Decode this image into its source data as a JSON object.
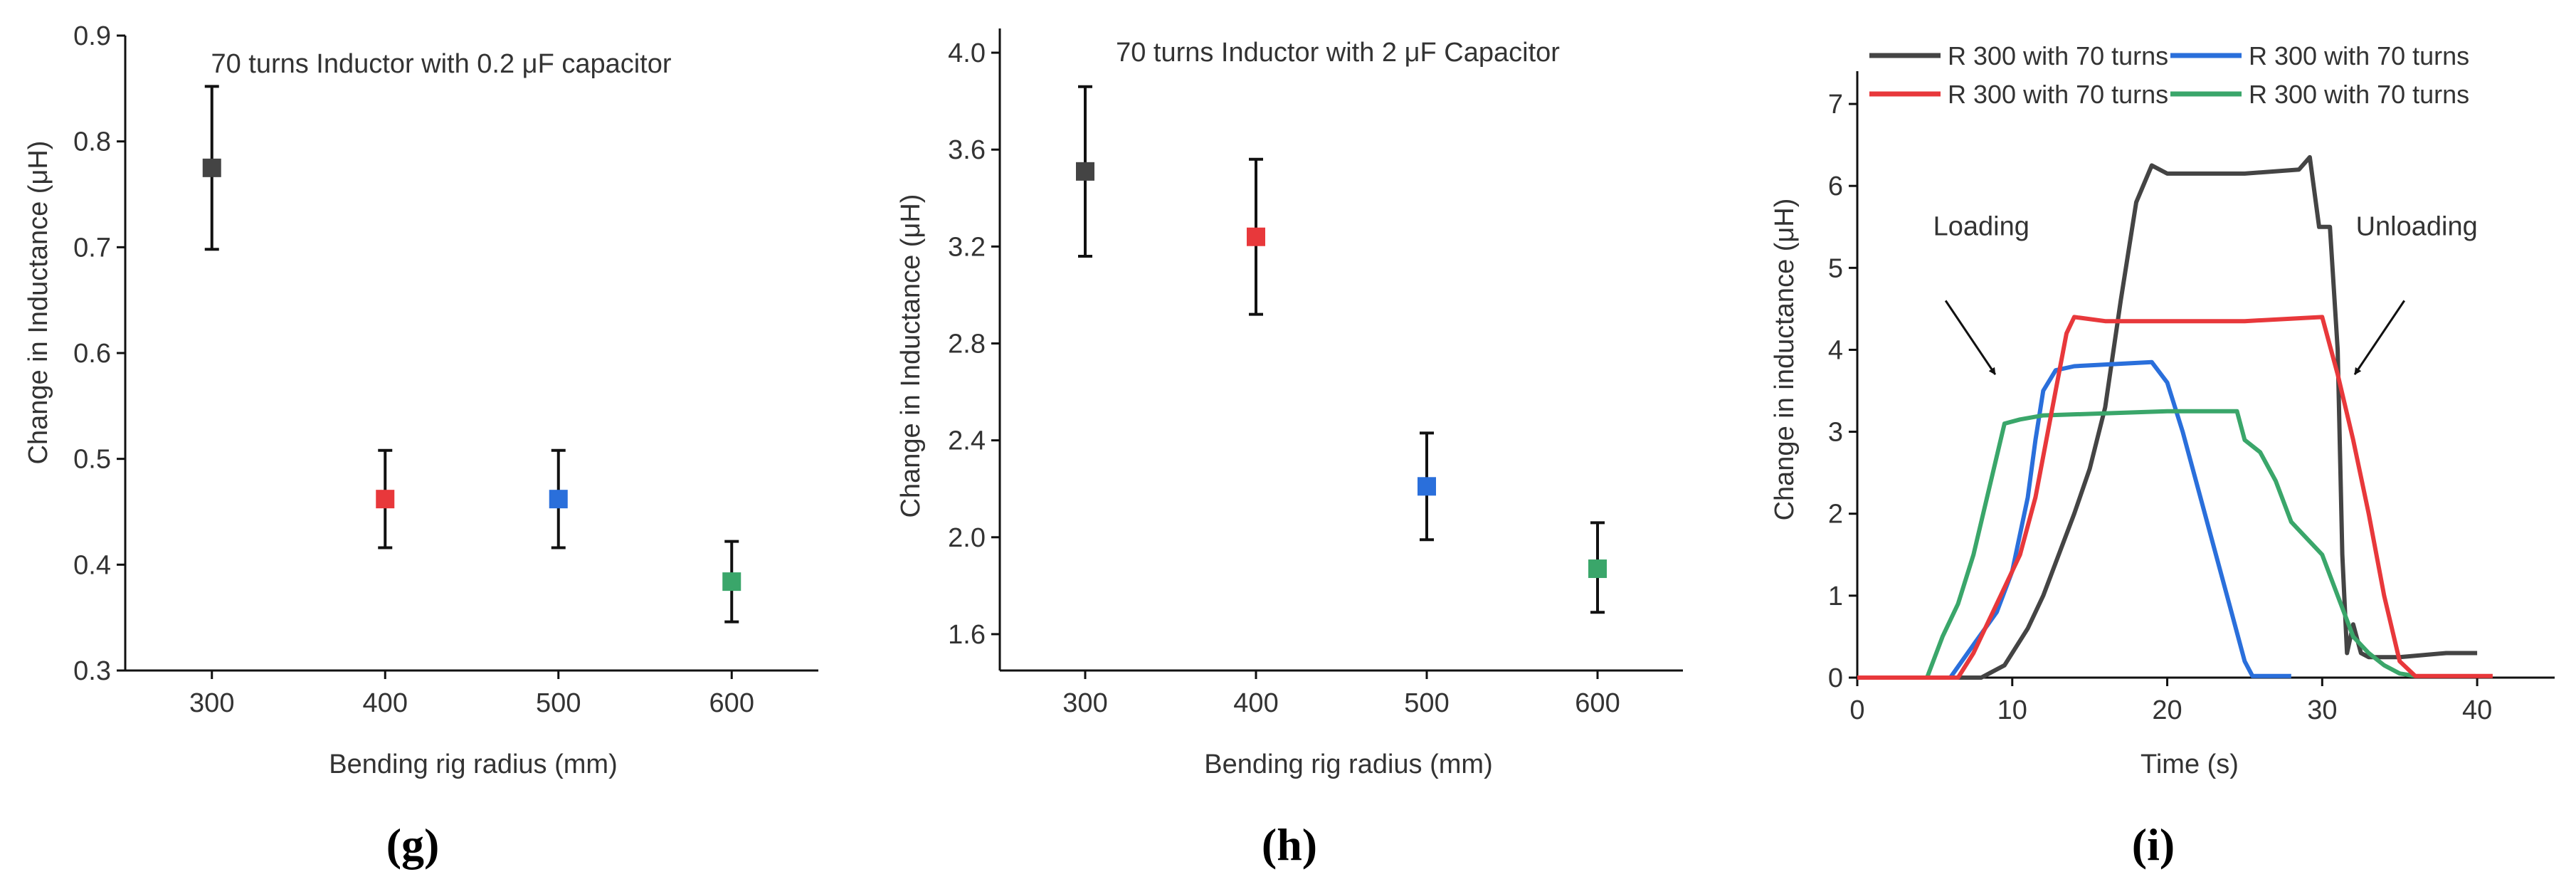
{
  "chart_data": [
    {
      "type": "scatter",
      "panel_label": "(g)",
      "title": "70 turns Inductor with 0.2 μF capacitor",
      "xlabel": "Bending rig radius (mm)",
      "ylabel": "Change in Inductance (μH)",
      "xlim": [
        250,
        650
      ],
      "ylim": [
        0.3,
        0.9
      ],
      "xticks": [
        300,
        400,
        500,
        600
      ],
      "yticks": [
        0.3,
        0.4,
        0.5,
        0.6,
        0.7,
        0.8,
        0.9
      ],
      "ytick_labels": [
        "0.3",
        "0.4",
        "0.5",
        "0.6",
        "0.7",
        "0.8",
        "0.9"
      ],
      "points": [
        {
          "x": 300,
          "y": 0.775,
          "err_low": 0.698,
          "err_high": 0.852,
          "color": "#444444"
        },
        {
          "x": 400,
          "y": 0.462,
          "err_low": 0.416,
          "err_high": 0.508,
          "color": "#e8383b"
        },
        {
          "x": 500,
          "y": 0.462,
          "err_low": 0.416,
          "err_high": 0.508,
          "color": "#2a6fdb"
        },
        {
          "x": 600,
          "y": 0.384,
          "err_low": 0.346,
          "err_high": 0.422,
          "color": "#3aa66a"
        }
      ]
    },
    {
      "type": "scatter",
      "panel_label": "(h)",
      "title": "70 turns Inductor with 2 μF Capacitor",
      "xlabel": "Bending rig radius (mm)",
      "ylabel": "Change in Inductance (μH)",
      "xlim": [
        250,
        650
      ],
      "ylim": [
        1.45,
        4.1
      ],
      "xticks": [
        300,
        400,
        500,
        600
      ],
      "yticks": [
        1.6,
        2.0,
        2.4,
        2.8,
        3.2,
        3.6,
        4.0
      ],
      "ytick_labels": [
        "1.6",
        "2.0",
        "2.4",
        "2.8",
        "3.2",
        "3.6",
        "4.0"
      ],
      "points": [
        {
          "x": 300,
          "y": 3.51,
          "err_low": 3.16,
          "err_high": 3.86,
          "color": "#444444"
        },
        {
          "x": 400,
          "y": 3.24,
          "err_low": 2.92,
          "err_high": 3.56,
          "color": "#e8383b"
        },
        {
          "x": 500,
          "y": 2.21,
          "err_low": 1.99,
          "err_high": 2.43,
          "color": "#2a6fdb"
        },
        {
          "x": 600,
          "y": 1.87,
          "err_low": 1.69,
          "err_high": 2.06,
          "color": "#3aa66a"
        }
      ]
    },
    {
      "type": "line",
      "panel_label": "(i)",
      "title": "",
      "xlabel": "Time (s)",
      "ylabel": "Change in inductance (μH)",
      "xlim": [
        0,
        45
      ],
      "ylim": [
        0,
        7.4
      ],
      "xticks": [
        0,
        10,
        20,
        30,
        40
      ],
      "yticks": [
        0,
        1,
        2,
        3,
        4,
        5,
        6,
        7
      ],
      "legend": "top",
      "annotations": [
        {
          "text": "Loading",
          "x": 8.0,
          "y": 5.4,
          "arrow_from": [
            5.7,
            4.6
          ],
          "arrow_to": [
            8.9,
            3.7
          ]
        },
        {
          "text": "Unloading",
          "x": 36.1,
          "y": 5.4,
          "arrow_from": [
            35.3,
            4.6
          ],
          "arrow_to": [
            32.1,
            3.7
          ]
        }
      ],
      "series": [
        {
          "name": "R 300 with 70 turns",
          "color": "#444444",
          "x": [
            0,
            8,
            9.5,
            11,
            12,
            13,
            14,
            15,
            16,
            17,
            18,
            19,
            20,
            25,
            28.5,
            29.2,
            29.8,
            30.5,
            31,
            31.3,
            31.6,
            32,
            32.5,
            33,
            35,
            38,
            40
          ],
          "y": [
            0,
            0,
            0.15,
            0.6,
            1.0,
            1.5,
            2.0,
            2.55,
            3.3,
            4.6,
            5.8,
            6.25,
            6.15,
            6.15,
            6.2,
            6.35,
            5.5,
            5.5,
            4.0,
            1.5,
            0.3,
            0.65,
            0.3,
            0.25,
            0.25,
            0.3,
            0.3
          ]
        },
        {
          "name": "R 300 with 70 turns",
          "color": "#2a6fdb",
          "x": [
            0,
            6,
            7.5,
            9,
            10,
            11,
            11.5,
            12,
            12.8,
            14,
            19,
            20,
            21,
            22,
            23,
            24,
            25,
            25.5,
            28
          ],
          "y": [
            0,
            0,
            0.4,
            0.8,
            1.3,
            2.2,
            2.9,
            3.5,
            3.75,
            3.8,
            3.85,
            3.6,
            3.0,
            2.3,
            1.6,
            0.9,
            0.2,
            0.02,
            0.02
          ]
        },
        {
          "name": "R 300 with 70 turns",
          "color": "#e8383b",
          "x": [
            0,
            6.5,
            7.5,
            8.5,
            9.5,
            10.5,
            11.5,
            12.5,
            13.5,
            14,
            16,
            25,
            30,
            31,
            32,
            33,
            34,
            35,
            36,
            41
          ],
          "y": [
            0,
            0,
            0.3,
            0.7,
            1.1,
            1.5,
            2.2,
            3.2,
            4.2,
            4.4,
            4.35,
            4.35,
            4.4,
            3.7,
            2.9,
            2.0,
            1.0,
            0.2,
            0.02,
            0.02
          ]
        },
        {
          "name": "R 300 with 70 turns",
          "color": "#3aa66a",
          "x": [
            0,
            4.5,
            5.5,
            6.5,
            7.5,
            8.5,
            9.5,
            10.5,
            12,
            20,
            24.5,
            25,
            26,
            27,
            28,
            29,
            30,
            31,
            32,
            33,
            34,
            35,
            36
          ],
          "y": [
            0,
            0,
            0.5,
            0.9,
            1.5,
            2.3,
            3.1,
            3.15,
            3.2,
            3.25,
            3.25,
            2.9,
            2.75,
            2.4,
            1.9,
            1.7,
            1.5,
            1.0,
            0.5,
            0.3,
            0.15,
            0.05,
            0.02
          ]
        }
      ]
    }
  ]
}
